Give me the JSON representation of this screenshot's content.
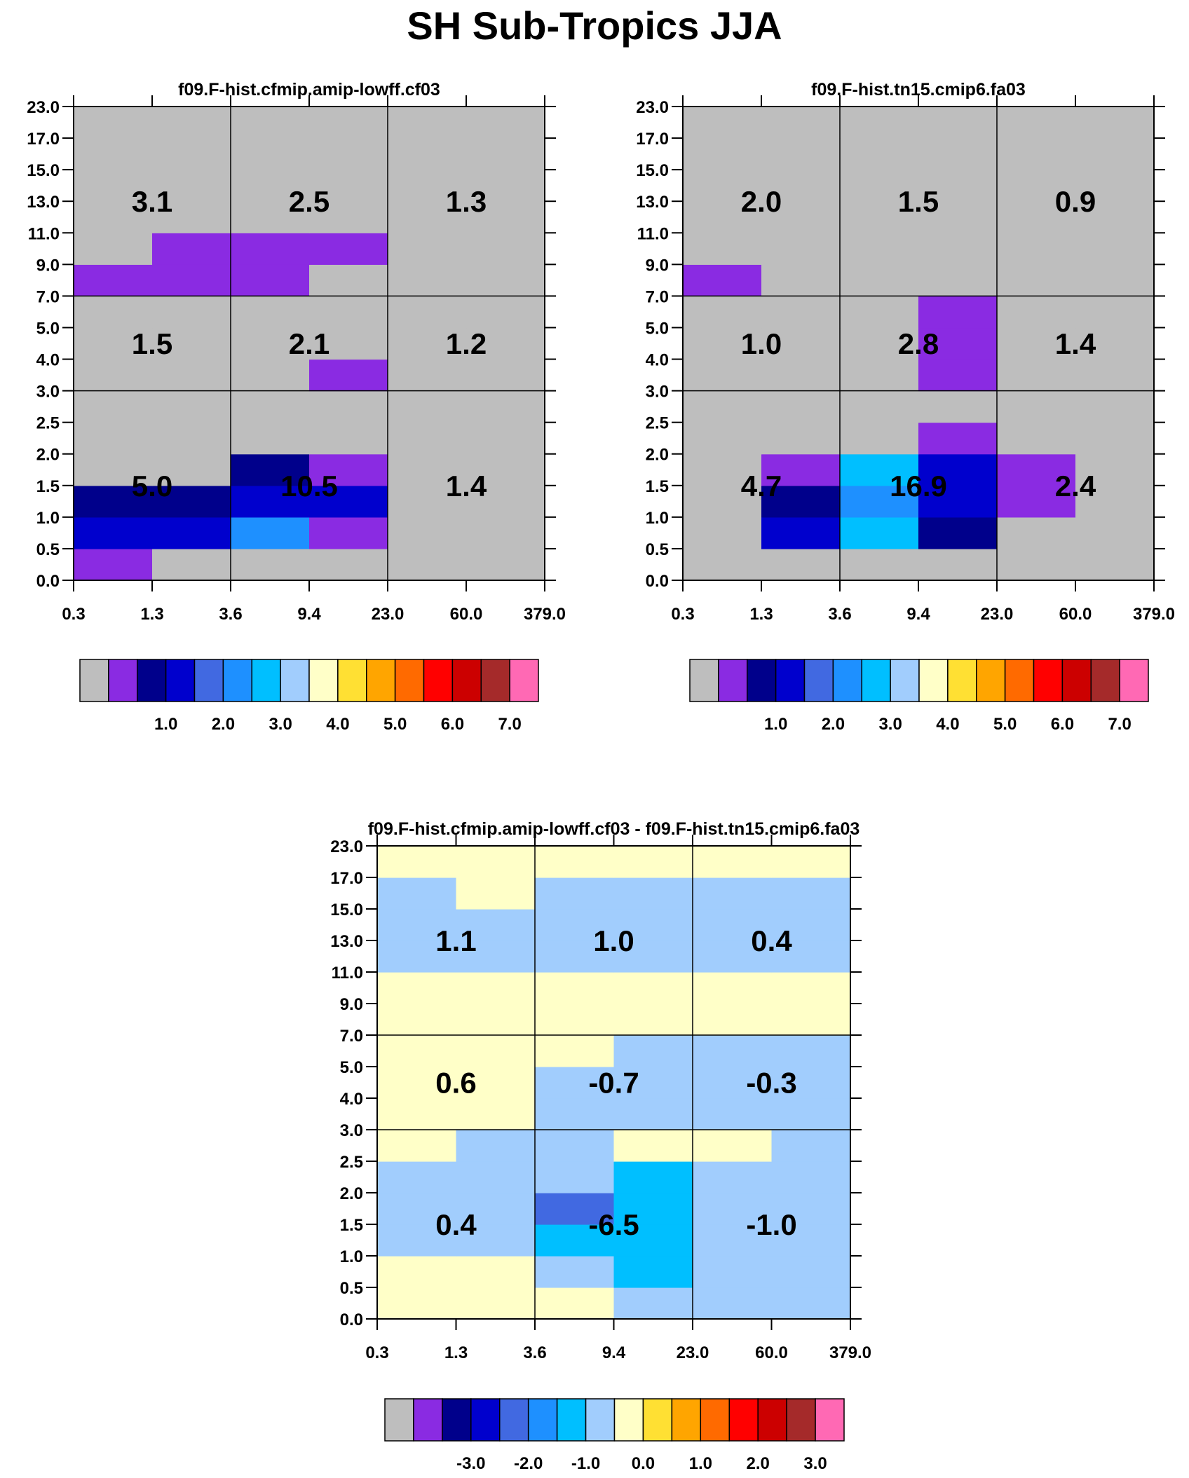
{
  "title": "SH Sub-Tropics JJA",
  "palettes": {
    "main": [
      "#bebebe",
      "#8a2be2",
      "#00008b",
      "#0000cd",
      "#4169e1",
      "#1e90ff",
      "#00bfff",
      "#a1cdfd",
      "#ffffc8",
      "#ffe033",
      "#ffa500",
      "#ff6a00",
      "#ff0000",
      "#cc0000",
      "#a52a2a",
      "#ff69b4"
    ]
  },
  "chart_data": [
    {
      "type": "heatmap",
      "title": "f09.F-hist.cfmip.amip-lowff.cf03",
      "x_ticks": [
        "0.3",
        "1.3",
        "3.6",
        "9.4",
        "23.0",
        "60.0",
        "379.0"
      ],
      "y_ticks": [
        "0.0",
        "0.5",
        "1.0",
        "1.5",
        "2.0",
        "2.5",
        "3.0",
        "4.0",
        "5.0",
        "7.0",
        "9.0",
        "11.0",
        "13.0",
        "15.0",
        "17.0",
        "23.0"
      ],
      "cell_colors": [
        [
          1,
          0,
          0,
          0,
          0,
          0
        ],
        [
          3,
          3,
          5,
          1,
          0,
          0
        ],
        [
          2,
          2,
          3,
          3,
          0,
          0
        ],
        [
          0,
          0,
          2,
          1,
          0,
          0
        ],
        [
          0,
          0,
          0,
          0,
          0,
          0
        ],
        [
          0,
          0,
          0,
          0,
          0,
          0
        ],
        [
          0,
          0,
          0,
          1,
          0,
          0
        ],
        [
          0,
          0,
          0,
          0,
          0,
          0
        ],
        [
          0,
          0,
          0,
          0,
          0,
          0
        ],
        [
          1,
          1,
          1,
          0,
          0,
          0
        ],
        [
          0,
          1,
          1,
          1,
          0,
          0
        ],
        [
          0,
          0,
          0,
          0,
          0,
          0
        ],
        [
          0,
          0,
          0,
          0,
          0,
          0
        ],
        [
          0,
          0,
          0,
          0,
          0,
          0
        ],
        [
          0,
          0,
          0,
          0,
          0,
          0
        ]
      ],
      "group_values": [
        [
          "5.0",
          "10.5",
          "1.4"
        ],
        [
          "1.5",
          "2.1",
          "1.2"
        ],
        [
          "3.1",
          "2.5",
          "1.3"
        ]
      ],
      "legend_labels": [
        "1.0",
        "2.0",
        "3.0",
        "4.0",
        "5.0",
        "6.0",
        "7.0"
      ]
    },
    {
      "type": "heatmap",
      "title": "f09.F-hist.tn15.cmip6.fa03",
      "x_ticks": [
        "0.3",
        "1.3",
        "3.6",
        "9.4",
        "23.0",
        "60.0",
        "379.0"
      ],
      "y_ticks": [
        "0.0",
        "0.5",
        "1.0",
        "1.5",
        "2.0",
        "2.5",
        "3.0",
        "4.0",
        "5.0",
        "7.0",
        "9.0",
        "11.0",
        "13.0",
        "15.0",
        "17.0",
        "23.0"
      ],
      "cell_colors": [
        [
          0,
          0,
          0,
          0,
          0,
          0
        ],
        [
          0,
          3,
          6,
          2,
          0,
          0
        ],
        [
          0,
          2,
          5,
          3,
          1,
          0
        ],
        [
          0,
          1,
          6,
          3,
          1,
          0
        ],
        [
          0,
          0,
          0,
          1,
          0,
          0
        ],
        [
          0,
          0,
          0,
          0,
          0,
          0
        ],
        [
          0,
          0,
          0,
          1,
          0,
          0
        ],
        [
          0,
          0,
          0,
          1,
          0,
          0
        ],
        [
          0,
          0,
          0,
          1,
          0,
          0
        ],
        [
          1,
          0,
          0,
          0,
          0,
          0
        ],
        [
          0,
          0,
          0,
          0,
          0,
          0
        ],
        [
          0,
          0,
          0,
          0,
          0,
          0
        ],
        [
          0,
          0,
          0,
          0,
          0,
          0
        ],
        [
          0,
          0,
          0,
          0,
          0,
          0
        ],
        [
          0,
          0,
          0,
          0,
          0,
          0
        ]
      ],
      "group_values": [
        [
          "4.7",
          "16.9",
          "2.4"
        ],
        [
          "1.0",
          "2.8",
          "1.4"
        ],
        [
          "2.0",
          "1.5",
          "0.9"
        ]
      ],
      "legend_labels": [
        "1.0",
        "2.0",
        "3.0",
        "4.0",
        "5.0",
        "6.0",
        "7.0"
      ]
    },
    {
      "type": "heatmap",
      "title": "f09.F-hist.cfmip.amip-lowff.cf03 - f09.F-hist.tn15.cmip6.fa03",
      "x_ticks": [
        "0.3",
        "1.3",
        "3.6",
        "9.4",
        "23.0",
        "60.0",
        "379.0"
      ],
      "y_ticks": [
        "0.0",
        "0.5",
        "1.0",
        "1.5",
        "2.0",
        "2.5",
        "3.0",
        "4.0",
        "5.0",
        "7.0",
        "9.0",
        "11.0",
        "13.0",
        "15.0",
        "17.0",
        "23.0"
      ],
      "cell_colors": [
        [
          8,
          8,
          8,
          7,
          7,
          7
        ],
        [
          8,
          8,
          7,
          6,
          7,
          7
        ],
        [
          7,
          7,
          6,
          6,
          7,
          7
        ],
        [
          7,
          7,
          4,
          6,
          7,
          7
        ],
        [
          7,
          7,
          7,
          6,
          7,
          7
        ],
        [
          8,
          7,
          7,
          8,
          8,
          7
        ],
        [
          8,
          8,
          7,
          7,
          7,
          7
        ],
        [
          8,
          8,
          7,
          7,
          7,
          7
        ],
        [
          8,
          8,
          8,
          7,
          7,
          7
        ],
        [
          8,
          8,
          8,
          8,
          8,
          8
        ],
        [
          8,
          8,
          8,
          8,
          8,
          8
        ],
        [
          7,
          7,
          7,
          7,
          7,
          7
        ],
        [
          7,
          7,
          7,
          7,
          7,
          7
        ],
        [
          7,
          8,
          7,
          7,
          7,
          7
        ],
        [
          8,
          8,
          8,
          8,
          8,
          8
        ]
      ],
      "group_values": [
        [
          "0.4",
          "-6.5",
          "-1.0"
        ],
        [
          "0.6",
          "-0.7",
          "-0.3"
        ],
        [
          "1.1",
          "1.0",
          "0.4"
        ]
      ],
      "legend_labels": [
        "-3.0",
        "-2.0",
        "-1.0",
        "0.0",
        "1.0",
        "2.0",
        "3.0"
      ]
    }
  ]
}
